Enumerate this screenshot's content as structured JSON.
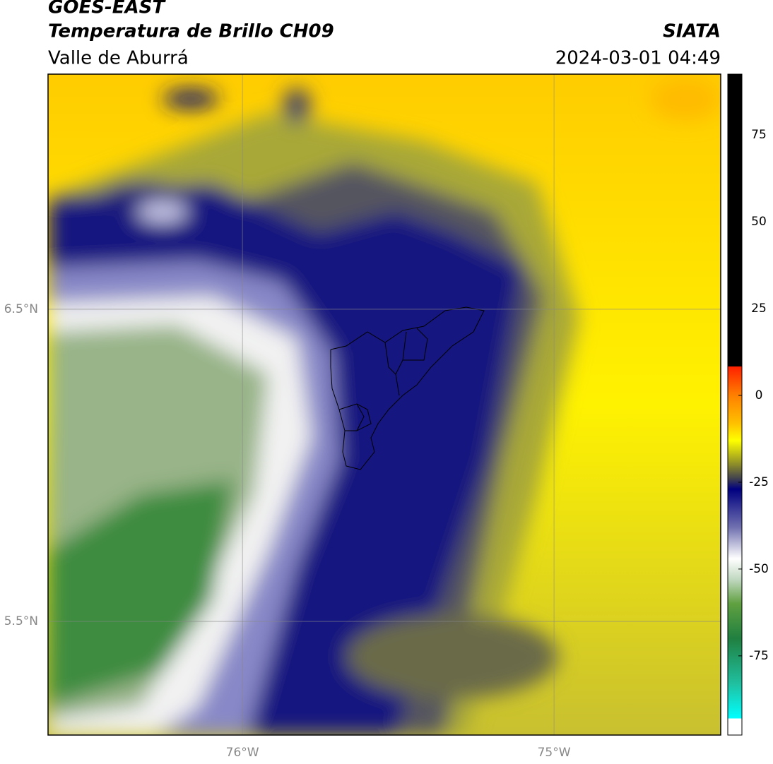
{
  "header": {
    "title": "GOES-EAST",
    "subtitle": "Temperatura de Brillo CH09",
    "region": "Valle de Aburrá",
    "source": "SIATA",
    "datetime": "2024-03-01 04:49"
  },
  "map": {
    "xlim": [
      -76.624,
      -74.465
    ],
    "ylim": [
      5.136,
      7.253
    ],
    "xticks": [
      {
        "value": -76,
        "label": "76°W"
      },
      {
        "value": -75,
        "label": "75°W"
      }
    ],
    "yticks": [
      {
        "value": 6.5,
        "label": "6.5°N"
      },
      {
        "value": 5.5,
        "label": "5.5°N"
      }
    ],
    "grid": true
  },
  "colorbar": {
    "lim": [
      -97.8,
      92.5
    ],
    "ticks": [
      75,
      50,
      25,
      0,
      -25,
      -50,
      -75
    ],
    "stops": [
      {
        "value": 92.5,
        "color": "#000000"
      },
      {
        "value": 8.3,
        "color": "#000000"
      },
      {
        "value": 8.3,
        "color": "#ff2000"
      },
      {
        "value": 0,
        "color": "#ff8000"
      },
      {
        "value": -8,
        "color": "#ffc000"
      },
      {
        "value": -13,
        "color": "#ffff00"
      },
      {
        "value": -20,
        "color": "#8a8a2a"
      },
      {
        "value": -24,
        "color": "#404050"
      },
      {
        "value": -27,
        "color": "#000080"
      },
      {
        "value": -38,
        "color": "#7070b0"
      },
      {
        "value": -47,
        "color": "#ffffff"
      },
      {
        "value": -53,
        "color": "#c0d8c0"
      },
      {
        "value": -60,
        "color": "#60a040"
      },
      {
        "value": -70,
        "color": "#208040"
      },
      {
        "value": -83,
        "color": "#20c0a0"
      },
      {
        "value": -93,
        "color": "#00ffff"
      },
      {
        "value": -93,
        "color": "#ffffff"
      },
      {
        "value": -97.8,
        "color": "#ffffff"
      }
    ]
  }
}
